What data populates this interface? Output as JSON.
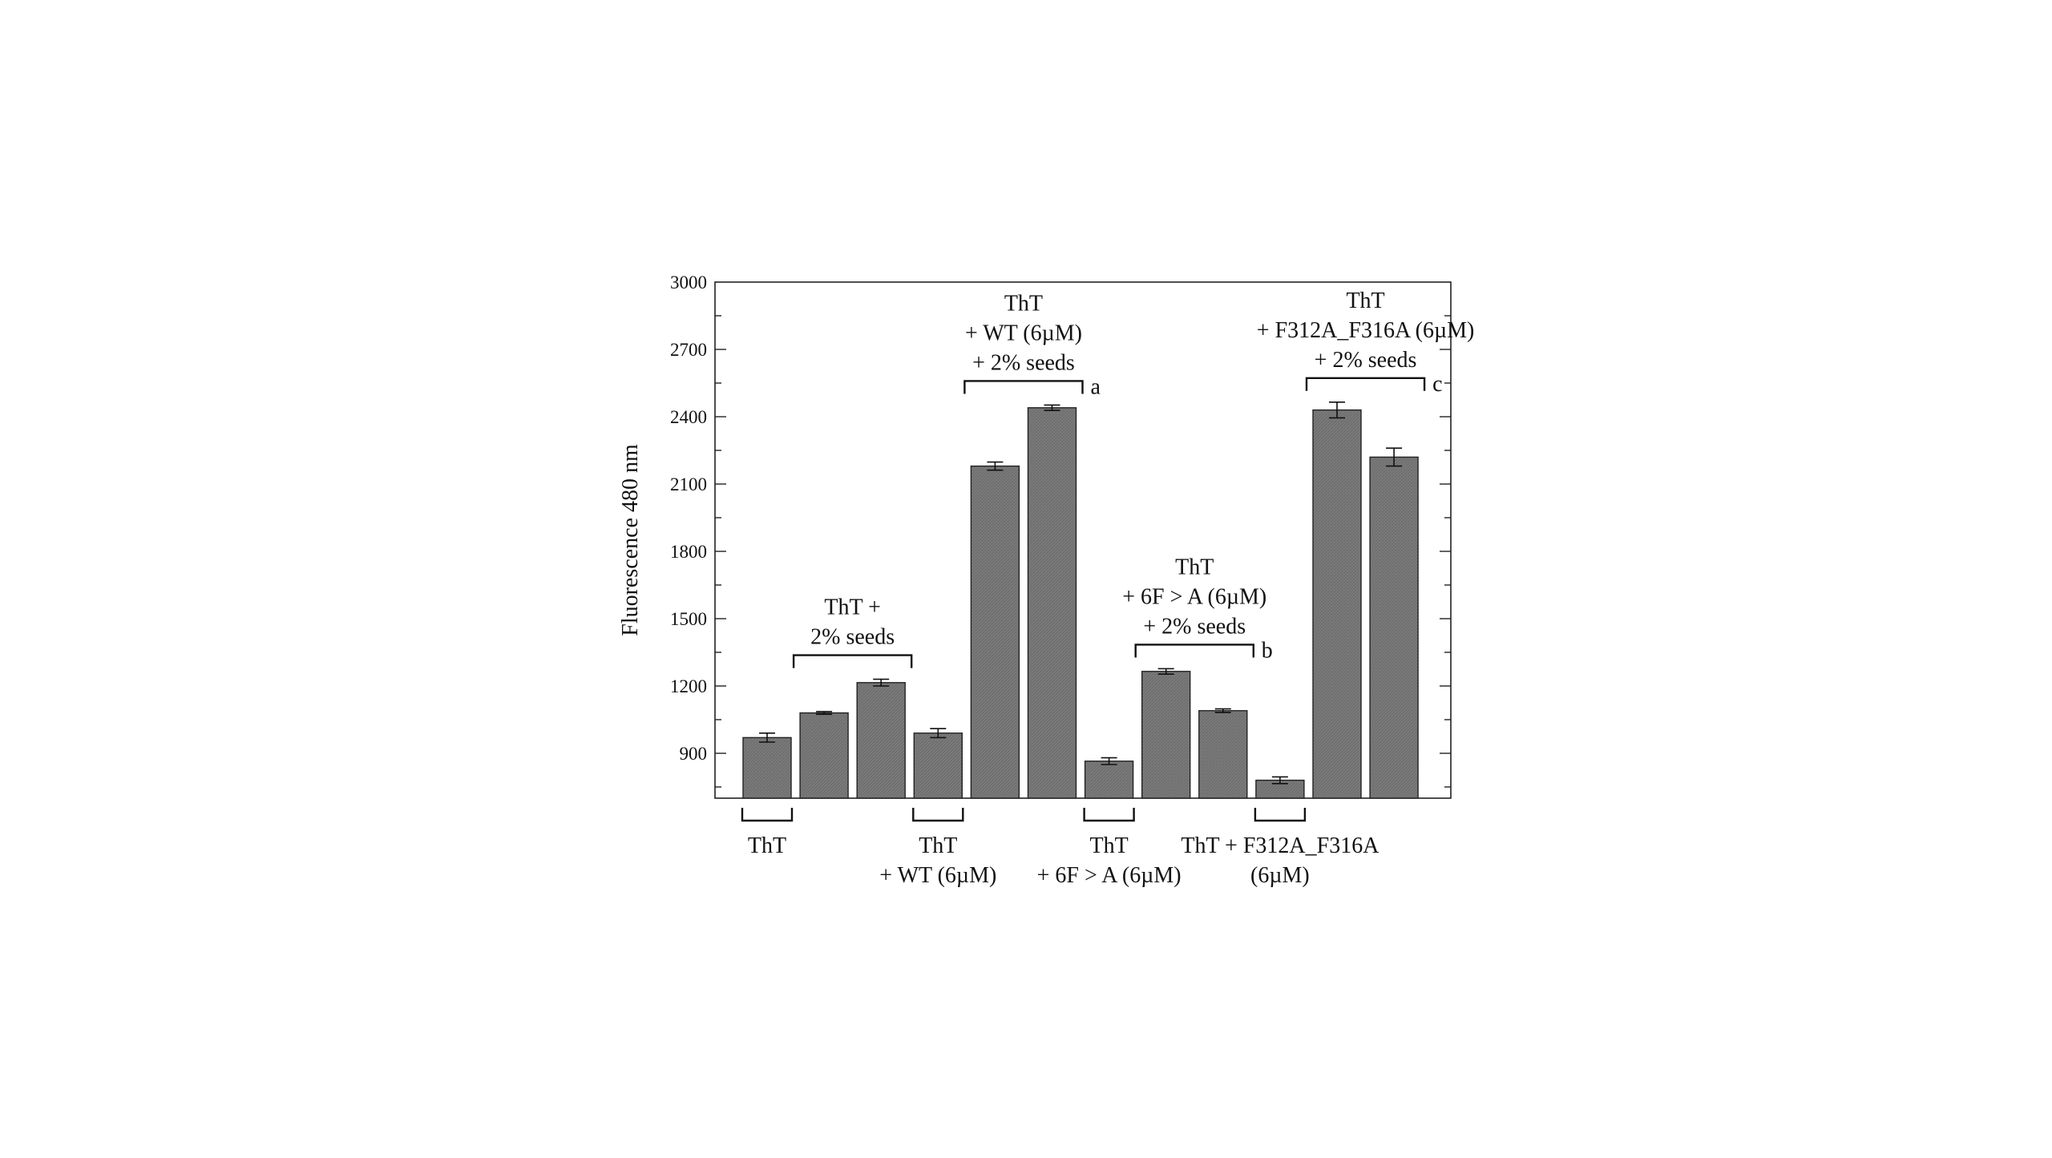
{
  "chart_data": {
    "type": "bar",
    "ylabel": "Fluorescence 480 nm",
    "xlabel": "",
    "ylim": [
      700,
      3000
    ],
    "yticks": [
      900,
      1200,
      1500,
      1800,
      2100,
      2400,
      2700,
      3000
    ],
    "bar_color": "#7a7a7a",
    "bars": [
      {
        "value": 970,
        "error": 20
      },
      {
        "value": 1080,
        "error": 6
      },
      {
        "value": 1215,
        "error": 15
      },
      {
        "value": 990,
        "error": 20
      },
      {
        "value": 2180,
        "error": 18
      },
      {
        "value": 2440,
        "error": 12
      },
      {
        "value": 865,
        "error": 15
      },
      {
        "value": 1265,
        "error": 12
      },
      {
        "value": 1090,
        "error": 8
      },
      {
        "value": 780,
        "error": 15
      },
      {
        "value": 2430,
        "error": 35
      },
      {
        "value": 2220,
        "error": 40
      }
    ],
    "top_annotations": [
      {
        "bars": [
          1,
          2
        ],
        "lines": [
          "ThT +",
          "2% seeds"
        ],
        "letter": ""
      },
      {
        "bars": [
          4,
          5
        ],
        "lines": [
          "ThT",
          "+  WT (6µM)",
          "+ 2% seeds"
        ],
        "letter": "a"
      },
      {
        "bars": [
          7,
          8
        ],
        "lines": [
          "ThT",
          "+ 6F > A (6µM)",
          "+ 2% seeds"
        ],
        "letter": "b"
      },
      {
        "bars": [
          10,
          11
        ],
        "lines": [
          "ThT",
          "+ F312A_F316A (6µM)",
          "+ 2% seeds"
        ],
        "letter": "c"
      }
    ],
    "bottom_groups": [
      {
        "bar": 0,
        "lines": [
          "ThT"
        ]
      },
      {
        "bar": 3,
        "lines": [
          "ThT",
          "+ WT (6µM)"
        ]
      },
      {
        "bar": 6,
        "lines": [
          "ThT",
          "+ 6F > A (6µM)"
        ]
      },
      {
        "bar": 9,
        "lines": [
          "ThT + F312A_F316A",
          "(6µM)"
        ]
      }
    ]
  }
}
